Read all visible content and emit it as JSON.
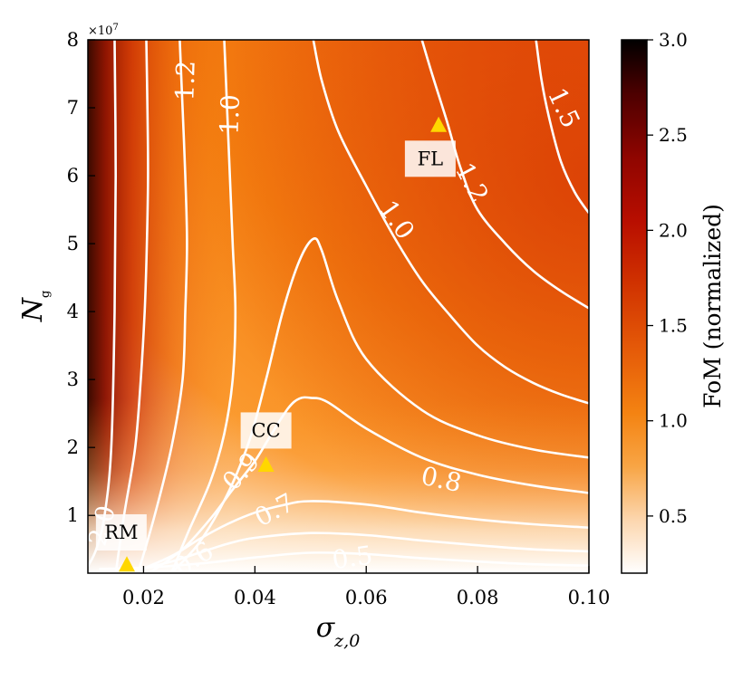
{
  "chart_data": {
    "type": "heatmap",
    "subtype": "filled-contour",
    "xlabel": "σ_{z,0}",
    "ylabel": "N_g",
    "y_scale_label": "×10^7",
    "xlim": [
      0.01,
      0.1
    ],
    "ylim": [
      1500000,
      80000000
    ],
    "x_ticks": [
      {
        "value": 0.02,
        "label": "0.02"
      },
      {
        "value": 0.04,
        "label": "0.04"
      },
      {
        "value": 0.06,
        "label": "0.06"
      },
      {
        "value": 0.08,
        "label": "0.08"
      },
      {
        "value": 0.1,
        "label": "0.10"
      }
    ],
    "y_ticks": [
      {
        "value": 10000000,
        "label": "1"
      },
      {
        "value": 20000000,
        "label": "2"
      },
      {
        "value": 30000000,
        "label": "3"
      },
      {
        "value": 40000000,
        "label": "4"
      },
      {
        "value": 50000000,
        "label": "5"
      },
      {
        "value": 60000000,
        "label": "6"
      },
      {
        "value": 70000000,
        "label": "7"
      },
      {
        "value": 80000000,
        "label": "8"
      }
    ],
    "colorbar": {
      "label": "FoM (normalized)",
      "colormap": "gist_heat_r",
      "range": [
        0.2,
        3.0
      ],
      "ticks": [
        {
          "value": 0.5,
          "label": "0.5"
        },
        {
          "value": 1.0,
          "label": "1.0"
        },
        {
          "value": 1.5,
          "label": "1.5"
        },
        {
          "value": 2.0,
          "label": "2.0"
        },
        {
          "value": 2.5,
          "label": "2.5"
        },
        {
          "value": 3.0,
          "label": "3.0"
        }
      ]
    },
    "contours": [
      {
        "level": "0.5",
        "points": [
          [
            0.012,
            2100000
          ],
          [
            0.02,
            2300000
          ],
          [
            0.03,
            2900000
          ],
          [
            0.04,
            3800000
          ],
          [
            0.05,
            4500000
          ],
          [
            0.06,
            4300000
          ],
          [
            0.07,
            3700000
          ],
          [
            0.08,
            3200000
          ],
          [
            0.09,
            2800000
          ],
          [
            0.1,
            2600000
          ]
        ]
      },
      {
        "level": "0.6",
        "points": [
          [
            0.015,
            1500000
          ],
          [
            0.02,
            2200000
          ],
          [
            0.025,
            3200000
          ],
          [
            0.03,
            4500000
          ],
          [
            0.035,
            5800000
          ],
          [
            0.04,
            6700000
          ],
          [
            0.05,
            7400000
          ],
          [
            0.06,
            7100000
          ],
          [
            0.07,
            6300000
          ],
          [
            0.08,
            5600000
          ],
          [
            0.09,
            5000000
          ],
          [
            0.1,
            4700000
          ]
        ]
      },
      {
        "level": "0.7",
        "points": [
          [
            0.018,
            1500000
          ],
          [
            0.025,
            4000000
          ],
          [
            0.03,
            6500000
          ],
          [
            0.035,
            8700000
          ],
          [
            0.04,
            10400000
          ],
          [
            0.045,
            11500000
          ],
          [
            0.05,
            12100000
          ],
          [
            0.06,
            11600000
          ],
          [
            0.07,
            10400000
          ],
          [
            0.08,
            9400000
          ],
          [
            0.09,
            8700000
          ],
          [
            0.1,
            8200000
          ]
        ]
      },
      {
        "level": "0.8",
        "points": [
          [
            0.021,
            1500000
          ],
          [
            0.027,
            5000000
          ],
          [
            0.032,
            9500000
          ],
          [
            0.036,
            13800000
          ],
          [
            0.04,
            18000000
          ],
          [
            0.043,
            22000000
          ],
          [
            0.046,
            25800000
          ],
          [
            0.048,
            27200000
          ],
          [
            0.05,
            27300000
          ],
          [
            0.053,
            26700000
          ],
          [
            0.06,
            22800000
          ],
          [
            0.07,
            18500000
          ],
          [
            0.08,
            16000000
          ],
          [
            0.09,
            14400000
          ],
          [
            0.1,
            13300000
          ]
        ]
      },
      {
        "level": "0.9",
        "points": [
          [
            0.025,
            1500000
          ],
          [
            0.03,
            6000000
          ],
          [
            0.035,
            13000000
          ],
          [
            0.039,
            21000000
          ],
          [
            0.042,
            30000000
          ],
          [
            0.045,
            40000000
          ],
          [
            0.048,
            47500000
          ],
          [
            0.0505,
            50700000
          ],
          [
            0.052,
            49000000
          ],
          [
            0.055,
            41500000
          ],
          [
            0.06,
            33000000
          ],
          [
            0.07,
            25500000
          ],
          [
            0.08,
            21800000
          ],
          [
            0.09,
            19700000
          ],
          [
            0.1,
            18500000
          ]
        ]
      },
      {
        "level": "1.0",
        "points": [
          [
            0.0345,
            80000000
          ],
          [
            0.035,
            70000000
          ],
          [
            0.0355,
            60000000
          ],
          [
            0.036,
            50000000
          ],
          [
            0.0365,
            40000000
          ],
          [
            0.036,
            30000000
          ],
          [
            0.0345,
            22000000
          ],
          [
            0.032,
            15000000
          ],
          [
            0.028,
            7500000
          ],
          [
            0.025,
            1500000
          ]
        ]
      },
      {
        "level": "1.0",
        "points": [
          [
            0.0505,
            80000000
          ],
          [
            0.052,
            74000000
          ],
          [
            0.055,
            66500000
          ],
          [
            0.06,
            58500000
          ],
          [
            0.065,
            51000000
          ],
          [
            0.07,
            44500000
          ],
          [
            0.075,
            39500000
          ],
          [
            0.08,
            35000000
          ],
          [
            0.085,
            31800000
          ],
          [
            0.09,
            29500000
          ],
          [
            0.095,
            27800000
          ],
          [
            0.1,
            26500000
          ]
        ]
      },
      {
        "level": "1.2",
        "points": [
          [
            0.0265,
            80000000
          ],
          [
            0.027,
            70000000
          ],
          [
            0.0275,
            60000000
          ],
          [
            0.0278,
            50000000
          ],
          [
            0.0275,
            40000000
          ],
          [
            0.027,
            30000000
          ],
          [
            0.025,
            20000000
          ],
          [
            0.022,
            10000000
          ],
          [
            0.019,
            1500000
          ]
        ]
      },
      {
        "level": "1.2",
        "points": [
          [
            0.07,
            80000000
          ],
          [
            0.072,
            74500000
          ],
          [
            0.0745,
            68000000
          ],
          [
            0.077,
            61000000
          ],
          [
            0.08,
            55000000
          ],
          [
            0.085,
            50000000
          ],
          [
            0.09,
            46000000
          ],
          [
            0.095,
            43000000
          ],
          [
            0.1,
            40500000
          ]
        ]
      },
      {
        "level": "1.5",
        "points": [
          [
            0.0205,
            80000000
          ],
          [
            0.0207,
            70000000
          ],
          [
            0.0208,
            60000000
          ],
          [
            0.0206,
            50000000
          ],
          [
            0.0202,
            40000000
          ],
          [
            0.0195,
            30000000
          ],
          [
            0.0185,
            20000000
          ],
          [
            0.0165,
            10000000
          ],
          [
            0.015,
            1500000
          ]
        ]
      },
      {
        "level": "1.5",
        "points": [
          [
            0.0905,
            80000000
          ],
          [
            0.0915,
            74000000
          ],
          [
            0.093,
            68000000
          ],
          [
            0.095,
            62000000
          ],
          [
            0.0975,
            57500000
          ],
          [
            0.1,
            54500000
          ]
        ]
      },
      {
        "level": "2.0",
        "points": [
          [
            0.0148,
            80000000
          ],
          [
            0.015,
            60000000
          ],
          [
            0.0148,
            40000000
          ],
          [
            0.0142,
            20000000
          ],
          [
            0.013,
            10000000
          ],
          [
            0.0115,
            5000000
          ],
          [
            0.01,
            2500000
          ]
        ]
      }
    ],
    "contour_labels": [
      {
        "text": "0.5",
        "x": 0.0575,
        "y": 3800000,
        "rotation": -8
      },
      {
        "text": "0.6",
        "x": 0.029,
        "y": 3600000,
        "rotation": -32
      },
      {
        "text": "0.7",
        "x": 0.0435,
        "y": 10800000,
        "rotation": -28
      },
      {
        "text": "0.8",
        "x": 0.0735,
        "y": 15300000,
        "rotation": 12
      },
      {
        "text": "0.9",
        "x": 0.0375,
        "y": 16500000,
        "rotation": -48
      },
      {
        "text": "1.0",
        "x": 0.0355,
        "y": 69000000,
        "rotation": -88
      },
      {
        "text": "1.0",
        "x": 0.0655,
        "y": 53500000,
        "rotation": 55
      },
      {
        "text": "1.2",
        "x": 0.0275,
        "y": 74000000,
        "rotation": -88
      },
      {
        "text": "1.2",
        "x": 0.079,
        "y": 59000000,
        "rotation": 62
      },
      {
        "text": "1.5",
        "x": 0.0955,
        "y": 70000000,
        "rotation": 65
      },
      {
        "text": "2.0",
        "x": 0.0125,
        "y": 8500000,
        "rotation": -75
      }
    ],
    "annotations": [
      {
        "label": "RM",
        "x": 0.017,
        "y": 2800000,
        "box_x": 0.016,
        "box_y": 7500000
      },
      {
        "label": "CC",
        "x": 0.042,
        "y": 17500000,
        "box_x": 0.042,
        "box_y": 22500000
      },
      {
        "label": "FL",
        "x": 0.073,
        "y": 67500000,
        "box_x": 0.0715,
        "box_y": 62500000
      }
    ],
    "marker_color": "#ffd700",
    "contour_color": "#ffffff"
  }
}
